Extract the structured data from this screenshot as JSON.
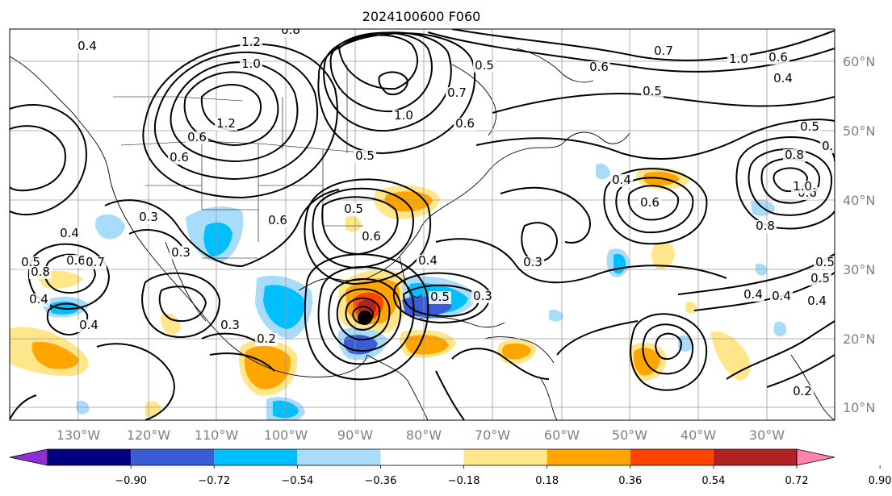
{
  "title": "2024100600 F060",
  "longitude_labels": [
    "130°W",
    "120°W",
    "110°W",
    "100°W",
    "90°W",
    "80°W",
    "70°W",
    "60°W",
    "50°W",
    "40°W",
    "30°W"
  ],
  "latitude_labels": [
    "60°N",
    "50°N",
    "40°N",
    "30°N",
    "20°N",
    "10°N"
  ],
  "colorbar": {
    "tick_labels": [
      "−0.90",
      "−0.72",
      "−0.54",
      "−0.36",
      "−0.18",
      "0.18",
      "0.36",
      "0.54",
      "0.72",
      "0.90"
    ],
    "colors": [
      "#8f2fd3",
      "#000080",
      "#3a5cd6",
      "#00bfff",
      "#a8dcfa",
      "#ffffff",
      "#ffe68a",
      "#ffa500",
      "#ff4500",
      "#b22222",
      "#ff85b0"
    ],
    "extend": "both"
  },
  "contour_labels": [
    "0.4",
    "1.2",
    "1.0",
    "0.8",
    "1.2",
    "0.5",
    "0.7",
    "1.0",
    "0.6",
    "0.5",
    "0.6",
    "0.6",
    "0.6",
    "0.5",
    "0.6",
    "0.3",
    "0.6",
    "0.4",
    "0.5",
    "0.3",
    "0.2",
    "0.3",
    "0.3",
    "0.5",
    "0.4",
    "0.8",
    "0.6",
    "0.4",
    "0.8",
    "0.5",
    "0.7",
    "0.6",
    "1.0",
    "0.6",
    "0.4",
    "0.5",
    "0.8",
    "0.6",
    "1.0",
    "0.4",
    "0.5",
    "0.4",
    "0.5",
    "0.4",
    "0.2",
    "0.8",
    "0.7",
    "0.3",
    "0.4",
    "0.4"
  ],
  "colors": {
    "background": "#ffffff",
    "contour": "#000000",
    "grid": "#9a9a9a",
    "axis_labels": "#808080",
    "storm_center": "#000000"
  }
}
